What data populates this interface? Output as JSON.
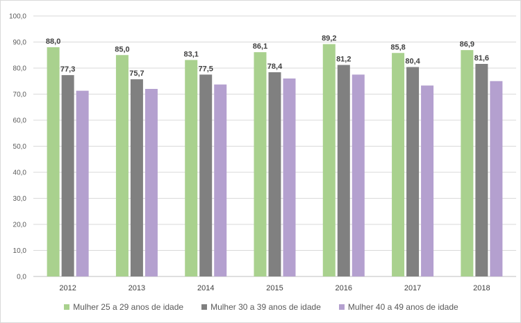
{
  "chart_data": {
    "type": "bar",
    "categories": [
      "2012",
      "2013",
      "2014",
      "2015",
      "2016",
      "2017",
      "2018"
    ],
    "series": [
      {
        "name": "Mulher 25 a 29 anos de idade",
        "color": "#a9d18e",
        "values": [
          88.0,
          85.0,
          83.1,
          86.1,
          89.2,
          85.8,
          86.9
        ],
        "labels": [
          "88,0",
          "85,0",
          "83,1",
          "86,1",
          "89,2",
          "85,8",
          "86,9"
        ]
      },
      {
        "name": "Mulher 30 a 39 anos de idade",
        "color": "#808080",
        "values": [
          77.3,
          75.7,
          77.5,
          78.4,
          81.2,
          80.4,
          81.6
        ],
        "labels": [
          "77,3",
          "75,7",
          "77,5",
          "78,4",
          "81,2",
          "80,4",
          "81,6"
        ]
      },
      {
        "name": "Mulher 40 a 49 anos de idade",
        "color": "#b4a0cf",
        "values": [
          71.3,
          72.0,
          73.7,
          76.0,
          77.5,
          73.3,
          75.0
        ]
      }
    ],
    "ylim": [
      0,
      100
    ],
    "yticks": [
      "0,0",
      "10,0",
      "20,0",
      "30,0",
      "40,0",
      "50,0",
      "60,0",
      "70,0",
      "80,0",
      "90,0",
      "100,0"
    ],
    "grid": true,
    "legend_position": "bottom"
  }
}
